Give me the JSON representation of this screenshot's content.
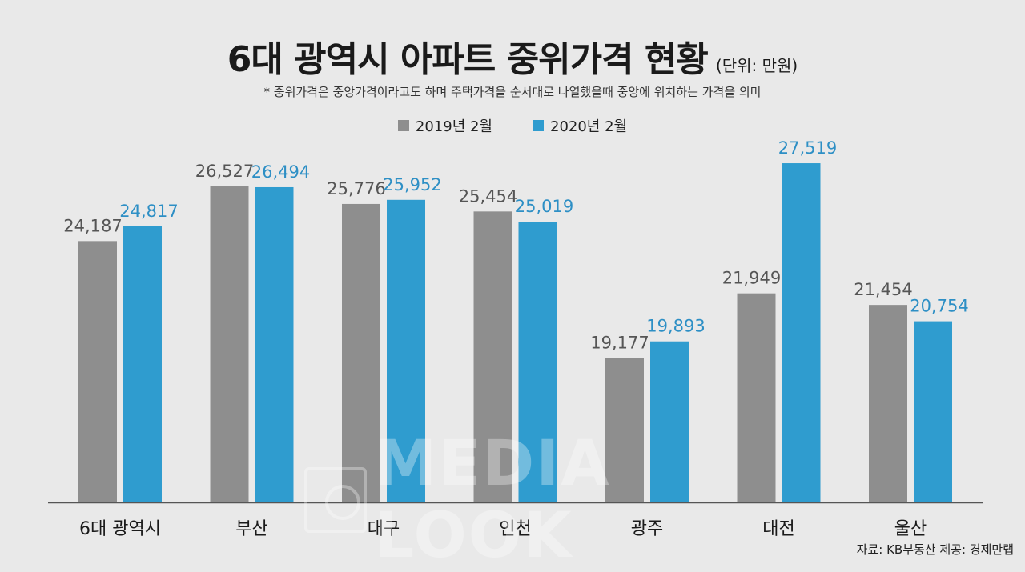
{
  "header": {
    "title": "6대 광역시 아파트 중위가격 현황",
    "unit": "(단위: 만원)",
    "subtitle": "* 중위가격은 중앙가격이라고도 하며 주택가격을 순서대로 나열했을때 중앙에 위치하는 가격을 의미"
  },
  "footer": {
    "source": "자료: KB부동산 제공: 경제만랩",
    "watermark": "MEDIA LOOK"
  },
  "colors": {
    "series_2019": "#8e8e8e",
    "series_2020": "#2f9ccf",
    "label_2019": "#555555",
    "label_2020": "#2d8fc5",
    "axis": "#555555"
  },
  "chart_data": {
    "type": "bar",
    "categories": [
      "6대 광역시",
      "부산",
      "대구",
      "인천",
      "광주",
      "대전",
      "울산"
    ],
    "series": [
      {
        "name": "2019년 2월",
        "values": [
          24187,
          26527,
          25776,
          25454,
          19177,
          21949,
          21454
        ]
      },
      {
        "name": "2020년 2월",
        "values": [
          24817,
          26494,
          25952,
          25019,
          19893,
          27519,
          20754
        ]
      }
    ],
    "data_labels": [
      [
        "24,187",
        "26,527",
        "25,776",
        "25,454",
        "19,177",
        "21,949",
        "21,454"
      ],
      [
        "24,817",
        "26,494",
        "25,952",
        "25,019",
        "19,893",
        "27,519",
        "20,754"
      ]
    ],
    "ylim": [
      13000,
      28000
    ],
    "grid": false,
    "legend_position": "top-center"
  }
}
